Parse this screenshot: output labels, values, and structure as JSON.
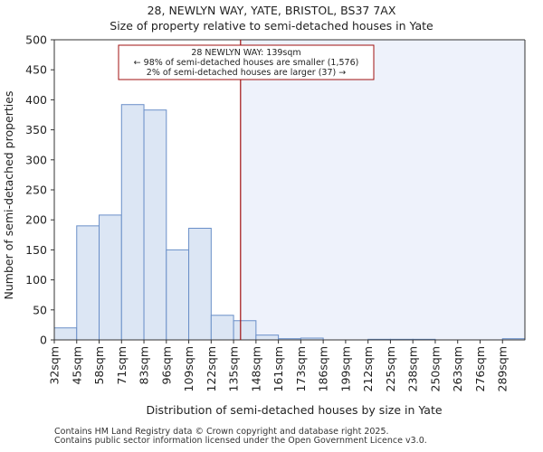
{
  "chart_data": {
    "type": "bar",
    "title": "28, NEWLYN WAY, YATE, BRISTOL, BS37 7AX",
    "subtitle": "Size of property relative to semi-detached houses in Yate",
    "xlabel": "Distribution of semi-detached houses by size in Yate",
    "ylabel": "Number of semi-detached properties",
    "ylim": [
      0,
      500
    ],
    "yticks": [
      0,
      50,
      100,
      150,
      200,
      250,
      300,
      350,
      400,
      450,
      500
    ],
    "categories": [
      "32sqm",
      "45sqm",
      "58sqm",
      "71sqm",
      "83sqm",
      "96sqm",
      "109sqm",
      "122sqm",
      "135sqm",
      "148sqm",
      "161sqm",
      "173sqm",
      "186sqm",
      "199sqm",
      "212sqm",
      "225sqm",
      "238sqm",
      "250sqm",
      "263sqm",
      "276sqm",
      "289sqm"
    ],
    "values": [
      20,
      190,
      208,
      392,
      383,
      150,
      186,
      41,
      32,
      8,
      2,
      3,
      0,
      0,
      1,
      1,
      1,
      0,
      0,
      0,
      2
    ],
    "marker": {
      "value": 139,
      "label": "28 NEWLYN WAY: 139sqm"
    },
    "annotation": {
      "line1": "28 NEWLYN WAY: 139sqm",
      "line2": "← 98% of semi-detached houses are smaller (1,576)",
      "line3": "2% of semi-detached houses are larger (37) →"
    },
    "colors": {
      "bar_fill": "#dce6f4",
      "bar_edge": "#6a8fc8",
      "marker": "#a01010",
      "shade": "#eef2fb"
    }
  },
  "footer": {
    "line1": "Contains HM Land Registry data © Crown copyright and database right 2025.",
    "line2": "Contains public sector information licensed under the Open Government Licence v3.0."
  }
}
